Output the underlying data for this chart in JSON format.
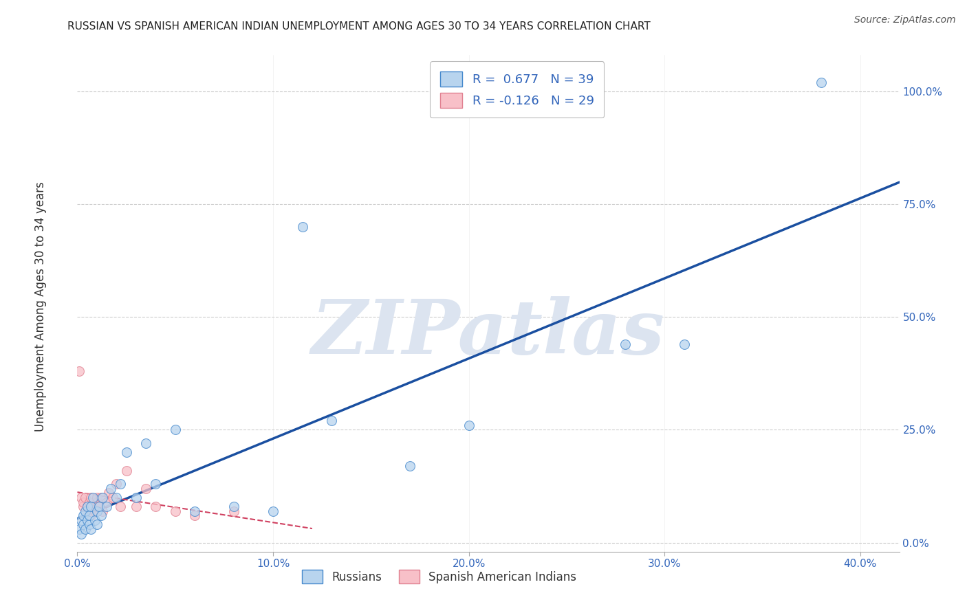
{
  "title": "RUSSIAN VS SPANISH AMERICAN INDIAN UNEMPLOYMENT AMONG AGES 30 TO 34 YEARS CORRELATION CHART",
  "source": "Source: ZipAtlas.com",
  "ylabel": "Unemployment Among Ages 30 to 34 years",
  "xlim": [
    0.0,
    0.42
  ],
  "ylim": [
    -0.02,
    1.08
  ],
  "xticks": [
    0.0,
    0.1,
    0.2,
    0.3,
    0.4
  ],
  "xtick_labels": [
    "0.0%",
    "10.0%",
    "20.0%",
    "30.0%",
    "40.0%"
  ],
  "yticks": [
    0.0,
    0.25,
    0.5,
    0.75,
    1.0
  ],
  "ytick_labels": [
    "0.0%",
    "25.0%",
    "50.0%",
    "75.0%",
    "100.0%"
  ],
  "russian_R": 0.677,
  "russian_N": 39,
  "spanish_R": -0.126,
  "spanish_N": 29,
  "russian_color": "#b8d4ee",
  "russian_edge_color": "#4488cc",
  "russian_line_color": "#1a4fa0",
  "spanish_color": "#f8c0c8",
  "spanish_edge_color": "#e08090",
  "spanish_line_color": "#d04060",
  "background_color": "#ffffff",
  "grid_color": "#cccccc",
  "watermark_text": "ZIPatlas",
  "watermark_color": "#dce4f0",
  "title_color": "#222222",
  "axis_label_color": "#333333",
  "tick_color": "#3366bb",
  "legend_text_color": "#3366bb",
  "russian_x": [
    0.001,
    0.002,
    0.002,
    0.003,
    0.003,
    0.004,
    0.004,
    0.005,
    0.005,
    0.006,
    0.006,
    0.007,
    0.007,
    0.008,
    0.009,
    0.01,
    0.01,
    0.011,
    0.012,
    0.013,
    0.015,
    0.017,
    0.02,
    0.022,
    0.025,
    0.03,
    0.035,
    0.04,
    0.05,
    0.06,
    0.08,
    0.1,
    0.115,
    0.13,
    0.17,
    0.2,
    0.28,
    0.31,
    0.38
  ],
  "russian_y": [
    0.03,
    0.02,
    0.05,
    0.04,
    0.06,
    0.03,
    0.07,
    0.05,
    0.08,
    0.04,
    0.06,
    0.08,
    0.03,
    0.1,
    0.05,
    0.07,
    0.04,
    0.08,
    0.06,
    0.1,
    0.08,
    0.12,
    0.1,
    0.13,
    0.2,
    0.1,
    0.22,
    0.13,
    0.25,
    0.07,
    0.08,
    0.07,
    0.7,
    0.27,
    0.17,
    0.26,
    0.44,
    0.44,
    1.02
  ],
  "spanish_x": [
    0.001,
    0.002,
    0.003,
    0.003,
    0.004,
    0.005,
    0.005,
    0.006,
    0.007,
    0.007,
    0.008,
    0.009,
    0.01,
    0.01,
    0.011,
    0.012,
    0.013,
    0.015,
    0.016,
    0.018,
    0.02,
    0.022,
    0.025,
    0.03,
    0.035,
    0.04,
    0.05,
    0.06,
    0.08
  ],
  "spanish_y": [
    0.38,
    0.1,
    0.08,
    0.09,
    0.1,
    0.07,
    0.08,
    0.09,
    0.06,
    0.1,
    0.08,
    0.07,
    0.09,
    0.1,
    0.08,
    0.1,
    0.07,
    0.09,
    0.11,
    0.1,
    0.13,
    0.08,
    0.16,
    0.08,
    0.12,
    0.08,
    0.07,
    0.06,
    0.07
  ]
}
